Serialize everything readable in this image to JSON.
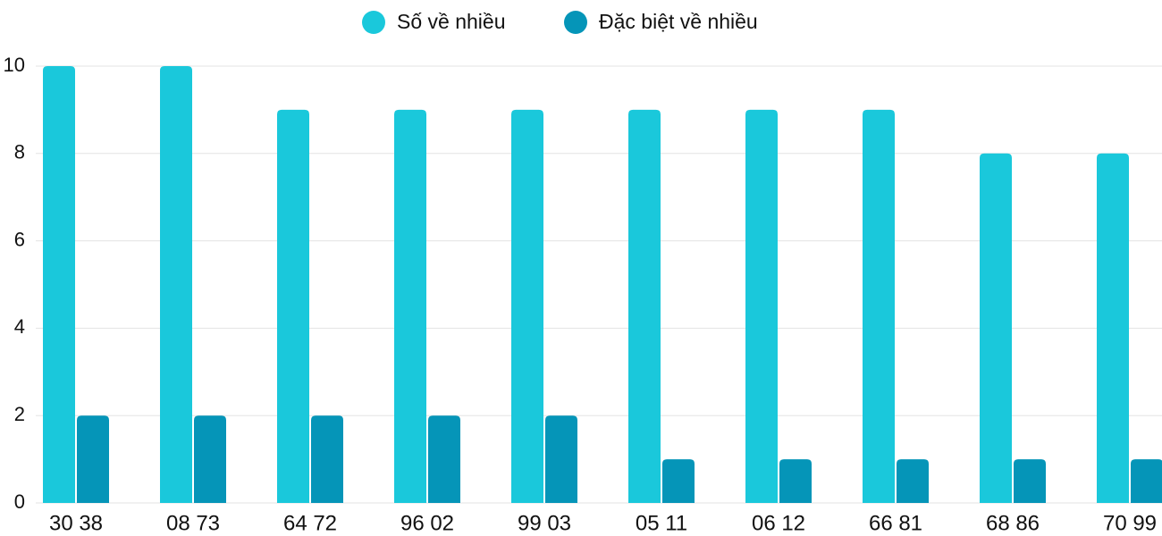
{
  "chart_data": {
    "type": "bar",
    "categories": [
      "30 38",
      "08 73",
      "64 72",
      "96 02",
      "99 03",
      "05 11",
      "06 12",
      "66 81",
      "68 86",
      "70 99"
    ],
    "series": [
      {
        "name": "Số về nhiều",
        "color": "#1ac8db",
        "values": [
          10,
          10,
          9,
          9,
          9,
          9,
          9,
          9,
          8,
          8
        ]
      },
      {
        "name": "Đặc biệt về nhiều",
        "color": "#0595b8",
        "values": [
          2,
          2,
          2,
          2,
          2,
          1,
          1,
          1,
          1,
          1
        ]
      }
    ],
    "ylim": [
      0,
      10
    ],
    "yticks": [
      0,
      2,
      4,
      6,
      8,
      10
    ],
    "grid": true,
    "legend": "top"
  }
}
